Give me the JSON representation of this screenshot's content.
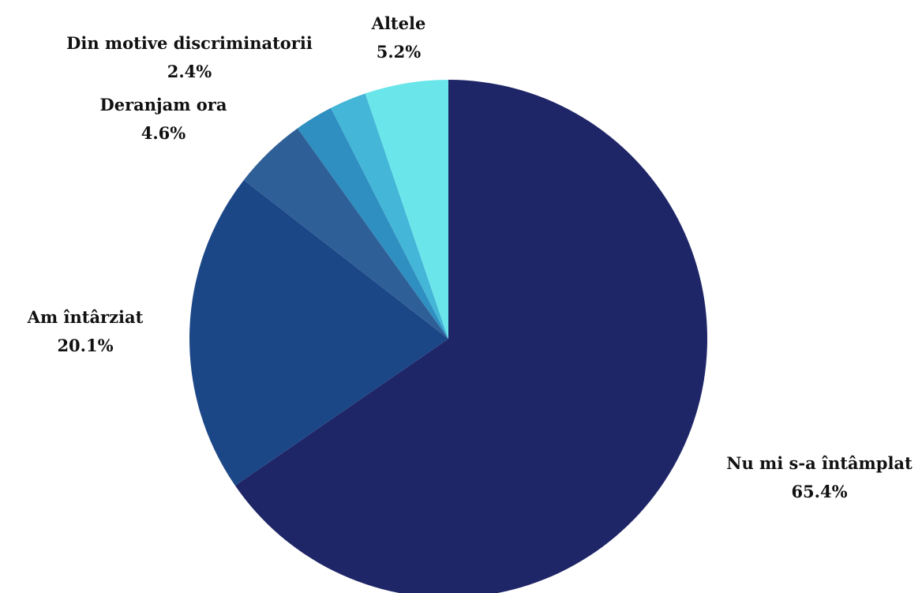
{
  "chart_data": {
    "type": "pie",
    "title": "",
    "start_angle_deg": 0,
    "direction": "clockwise",
    "slices": [
      {
        "label": "Nu mi s-a întâmplat",
        "value": 65.4,
        "display": "65.4%",
        "color": "#1f2667"
      },
      {
        "label": "Am întârziat",
        "value": 20.1,
        "display": "20.1%",
        "color": "#1c4787"
      },
      {
        "label": "Deranjam ora",
        "value": 4.6,
        "display": "4.6%",
        "color": "#2f5f97"
      },
      {
        "label": "Din motive discriminatorii",
        "value": 2.4,
        "display": "2.4%",
        "color": "#2f8fc0"
      },
      {
        "label": "",
        "value": 2.3,
        "display": "",
        "color": "#44b6d8"
      },
      {
        "label": "Altele",
        "value": 5.2,
        "display": "5.2%",
        "color": "#6ae6ea"
      }
    ]
  }
}
